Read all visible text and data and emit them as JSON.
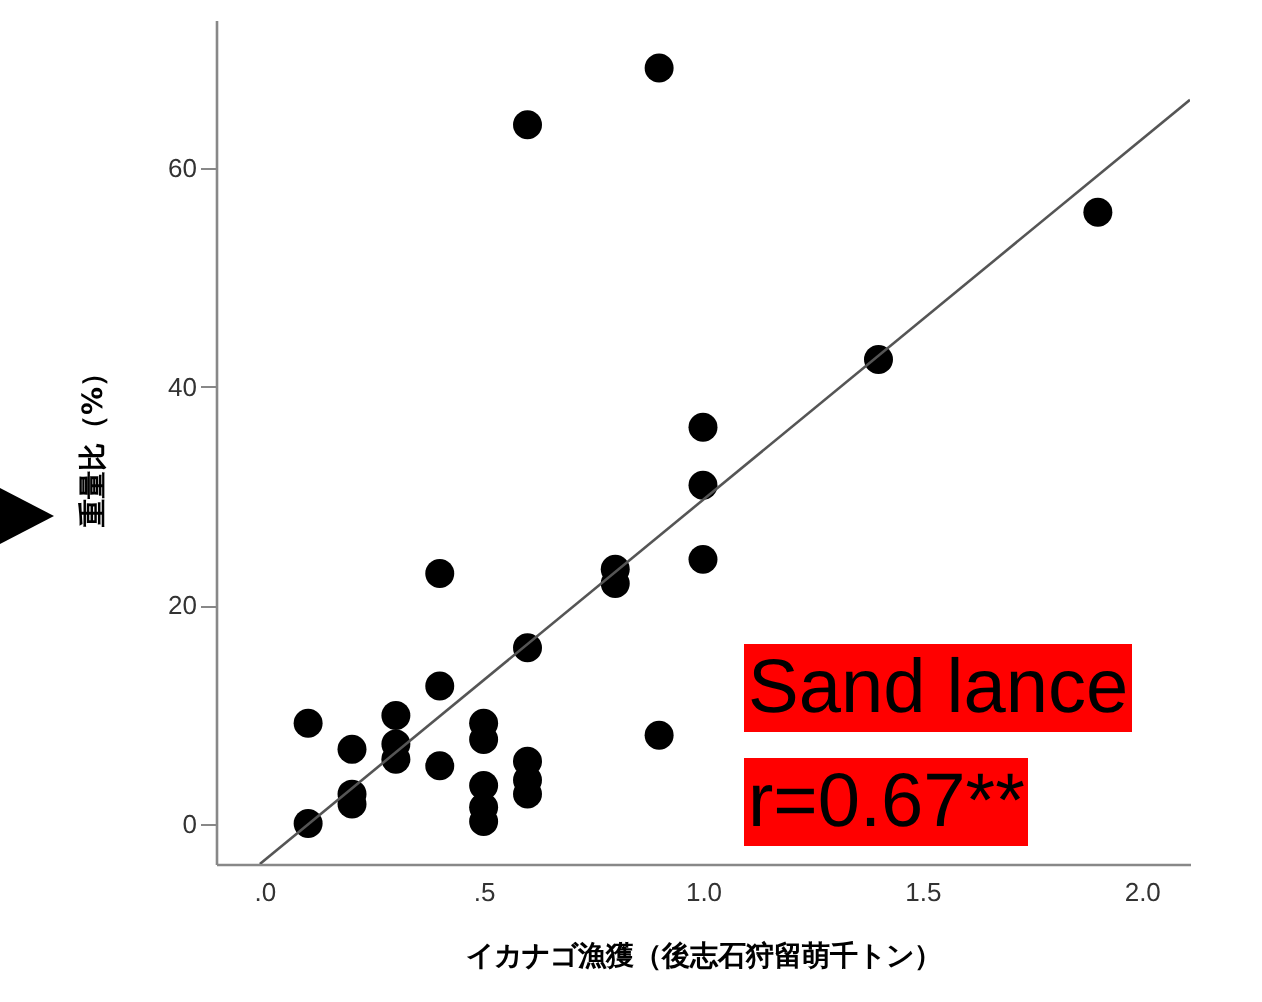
{
  "chart_data": {
    "type": "scatter",
    "xlabel": "イカナゴ漁獲（後志石狩留萌千トン）",
    "ylabel": "重量比（%）",
    "x": [
      0.1,
      0.1,
      0.2,
      0.2,
      0.2,
      0.3,
      0.3,
      0.3,
      0.4,
      0.4,
      0.4,
      0.5,
      0.5,
      0.5,
      0.5,
      0.5,
      0.6,
      0.6,
      0.6,
      0.6,
      0.6,
      0.8,
      0.8,
      0.9,
      0.9,
      1.0,
      1.0,
      1.0,
      1.4,
      1.9
    ],
    "series": [
      {
        "color": "#000000",
        "values": [
          9.2,
          0,
          6.8,
          2.7,
          1.8,
          9.9,
          7.3,
          5.9,
          22.9,
          12.6,
          5.3,
          9.2,
          7.7,
          3.5,
          1.5,
          0.2,
          64,
          16.1,
          5.7,
          4,
          2.7,
          23.3,
          22,
          69.2,
          8.1,
          36.3,
          31,
          24.2,
          42.5,
          56
        ]
      },
      {
        "type": "line",
        "color": "#555555",
        "line_style": "solid",
        "marker": "none",
        "x": [
          -0.01,
          2.11
        ],
        "values": [
          -3.7,
          66.3
        ]
      }
    ],
    "xlim": [
      -0.11,
      2.11
    ],
    "ylim": [
      -3.7,
      73.6
    ],
    "xticks": [
      {
        "value": 0,
        "label": ".0"
      },
      {
        "value": 0.5,
        "label": ".5"
      },
      {
        "value": 1,
        "label": "1.0"
      },
      {
        "value": 1.5,
        "label": "1.5"
      },
      {
        "value": 2,
        "label": "2.0"
      }
    ],
    "yticks": [
      0,
      20,
      40,
      60
    ],
    "grid": false,
    "marker": "circle",
    "annotations": [
      "Sand lance",
      "r=0.67**"
    ]
  }
}
